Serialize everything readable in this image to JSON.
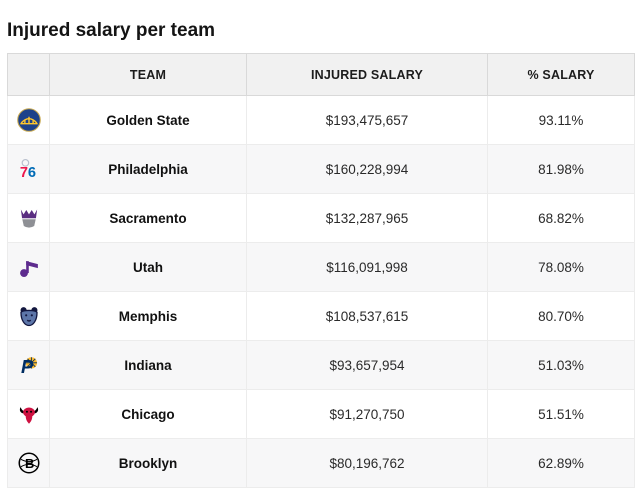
{
  "page": {
    "title": "Injured salary per team"
  },
  "table": {
    "columns": [
      "",
      "TEAM",
      "INJURED SALARY",
      "% SALARY"
    ],
    "rows": [
      {
        "team": "Golden State",
        "injured_salary": "$193,475,657",
        "pct_salary": "93.11%",
        "logo_key": "golden-state",
        "logo_icon": "golden-state-warriors-logo-icon",
        "colors": [
          "#1d428a",
          "#ffc72c"
        ]
      },
      {
        "team": "Philadelphia",
        "injured_salary": "$160,228,994",
        "pct_salary": "81.98%",
        "logo_key": "philadelphia",
        "logo_icon": "philadelphia-76ers-logo-icon",
        "colors": [
          "#ed174c",
          "#006bb6"
        ]
      },
      {
        "team": "Sacramento",
        "injured_salary": "$132,287,965",
        "pct_salary": "68.82%",
        "logo_key": "sacramento",
        "logo_icon": "sacramento-kings-logo-icon",
        "colors": [
          "#5a2d81",
          "#8e9095"
        ]
      },
      {
        "team": "Utah",
        "injured_salary": "$116,091,998",
        "pct_salary": "78.08%",
        "logo_key": "utah",
        "logo_icon": "utah-jazz-logo-icon",
        "colors": [
          "#5d2b8e",
          "#5d2b8e"
        ]
      },
      {
        "team": "Memphis",
        "injured_salary": "$108,537,615",
        "pct_salary": "80.70%",
        "logo_key": "memphis",
        "logo_icon": "memphis-grizzlies-logo-icon",
        "colors": [
          "#5d76a9",
          "#12173f"
        ]
      },
      {
        "team": "Indiana",
        "injured_salary": "$93,657,954",
        "pct_salary": "51.03%",
        "logo_key": "indiana",
        "logo_icon": "indiana-pacers-logo-icon",
        "colors": [
          "#002d62",
          "#fdbb30"
        ]
      },
      {
        "team": "Chicago",
        "injured_salary": "$91,270,750",
        "pct_salary": "51.51%",
        "logo_key": "chicago",
        "logo_icon": "chicago-bulls-logo-icon",
        "colors": [
          "#ce1141",
          "#000000"
        ]
      },
      {
        "team": "Brooklyn",
        "injured_salary": "$80,196,762",
        "pct_salary": "62.89%",
        "logo_key": "brooklyn",
        "logo_icon": "brooklyn-nets-logo-icon",
        "colors": [
          "#000000",
          "#ffffff"
        ]
      }
    ]
  },
  "colors": {
    "header_bg": "#f1f1f1",
    "row_stripe_bg": "#f7f7f8",
    "cell_border": "#ececec",
    "header_border": "#d9d9d9",
    "title_text": "#141414",
    "body_text": "#2a2a2a"
  }
}
